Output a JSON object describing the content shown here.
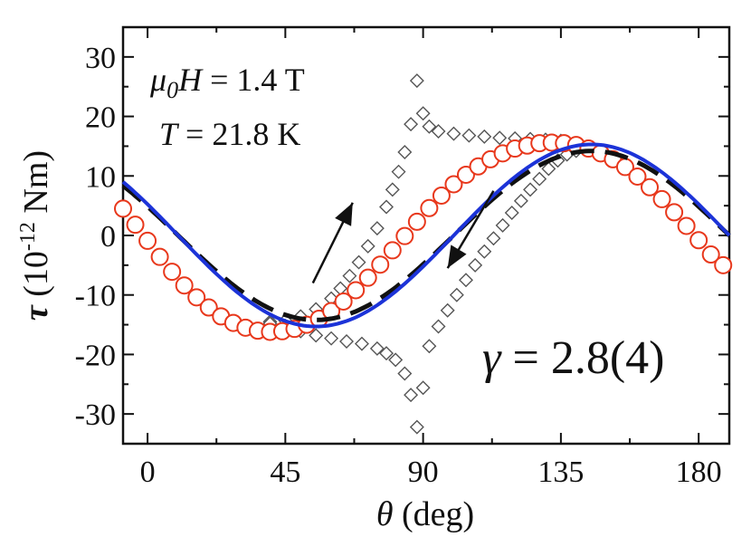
{
  "chart_data": {
    "type": "scatter",
    "xlabel": {
      "symbol": "θ",
      "unit": " (deg)"
    },
    "ylabel": {
      "symbol": "τ",
      "pre": " (10",
      "exp": "-12",
      "post": " Nm)"
    },
    "xlim": [
      -8,
      190
    ],
    "ylim": [
      -35,
      35
    ],
    "xticks": [
      0,
      45,
      90,
      135,
      180
    ],
    "yticks": [
      -30,
      -20,
      -10,
      0,
      10,
      20,
      30
    ],
    "annotations": {
      "field_sym": "μ",
      "field_sub": "0",
      "field_H": "H",
      "field_rest": " = 1.4 T",
      "temp_T": "T",
      "temp_rest": " = 21.8 K",
      "gamma_sym": "γ",
      "gamma_rest": " = 2.8(4)"
    },
    "colors": {
      "circles": "#e8381c",
      "blue_line": "#1c33d8",
      "dashed_line": "#111111",
      "diamonds": "#555555"
    },
    "series": [
      {
        "kind": "circles",
        "x": [
          -8,
          -4,
          0,
          4,
          8,
          12,
          16,
          20,
          24,
          28,
          32,
          36,
          40,
          44,
          48,
          52,
          56,
          60,
          64,
          68,
          72,
          76,
          80,
          84,
          88,
          92,
          96,
          100,
          104,
          108,
          112,
          116,
          120,
          124,
          128,
          132,
          136,
          140,
          144,
          148,
          152,
          156,
          160,
          164,
          168,
          172,
          176,
          180,
          184,
          188
        ],
        "y": [
          4.5,
          1.8,
          -0.9,
          -3.6,
          -6.1,
          -8.4,
          -10.4,
          -12.1,
          -13.6,
          -14.7,
          -15.5,
          -16.0,
          -16.2,
          -16.1,
          -15.7,
          -15.0,
          -14.0,
          -12.7,
          -11.1,
          -9.2,
          -7.1,
          -4.9,
          -2.5,
          -0.1,
          2.3,
          4.6,
          6.7,
          8.6,
          10.2,
          11.6,
          12.8,
          13.8,
          14.6,
          15.1,
          15.5,
          15.6,
          15.5,
          15.2,
          14.6,
          13.8,
          12.8,
          11.5,
          9.9,
          8.1,
          6.1,
          3.9,
          1.6,
          -0.8,
          -3.2,
          -5.0
        ]
      },
      {
        "kind": "diamonds",
        "branch": "up",
        "x": [
          40,
          45,
          50,
          55,
          60,
          63,
          66,
          69,
          72,
          75,
          78,
          80,
          82,
          84,
          86,
          88,
          90,
          92,
          95,
          100,
          105,
          110,
          115,
          120,
          125,
          130,
          135,
          140,
          145
        ],
        "y": [
          -14.5,
          -14.3,
          -13.6,
          -12.4,
          -10.6,
          -8.9,
          -6.8,
          -4.5,
          -1.8,
          1.2,
          4.8,
          7.7,
          10.7,
          14.0,
          18.7,
          26.0,
          20.5,
          18.3,
          17.5,
          17.1,
          16.8,
          16.6,
          16.4,
          16.3,
          16.2,
          16.1,
          15.9,
          15.5,
          14.8
        ]
      },
      {
        "kind": "diamonds",
        "branch": "down",
        "x": [
          40,
          45,
          50,
          55,
          60,
          65,
          70,
          75,
          78,
          81,
          84,
          86,
          88,
          90,
          92,
          95,
          98,
          101,
          104,
          107,
          110,
          113,
          116,
          119,
          122,
          125,
          128,
          131,
          134,
          137,
          140,
          145
        ],
        "y": [
          -14.8,
          -15.2,
          -16.1,
          -16.8,
          -17.3,
          -17.8,
          -18.2,
          -19.0,
          -19.8,
          -20.9,
          -23.2,
          -26.8,
          -32.2,
          -25.6,
          -18.6,
          -15.3,
          -12.6,
          -10.0,
          -7.5,
          -5.0,
          -2.7,
          -0.5,
          1.7,
          3.8,
          5.8,
          7.7,
          9.5,
          11.2,
          12.6,
          13.6,
          14.2,
          14.7
        ]
      }
    ],
    "blue_curve": {
      "amplitude": 15.3,
      "x0": -8,
      "x1": 190
    },
    "dashed_curve": {
      "amplitude": 14.2,
      "x0": -8,
      "x1": 190
    },
    "arrows": [
      {
        "direction": "up",
        "from": [
          54,
          -8
        ],
        "to": [
          67,
          5.5
        ]
      },
      {
        "direction": "down",
        "from": [
          113,
          7.5
        ],
        "to": [
          98,
          -5.5
        ]
      }
    ]
  }
}
